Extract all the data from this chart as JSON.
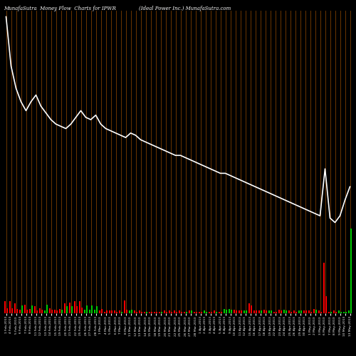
{
  "title_left": "MunafaSutra  Money Flow  Charts for IPWR",
  "title_right": "(Ideal Power Inc.) MunafaSutra.com",
  "background_color": "#000000",
  "line_color": "#ffffff",
  "separator_color": "#8B4500",
  "fig_width": 5.0,
  "fig_height": 5.0,
  "line_data": [
    100,
    78,
    68,
    62,
    58,
    62,
    65,
    60,
    57,
    54,
    52,
    51,
    50,
    52,
    55,
    58,
    55,
    54,
    56,
    52,
    50,
    49,
    48,
    47,
    46,
    48,
    47,
    45,
    44,
    43,
    42,
    41,
    40,
    39,
    38,
    38,
    37,
    36,
    35,
    34,
    33,
    32,
    31,
    30,
    30,
    29,
    28,
    27,
    26,
    25,
    24,
    23,
    22,
    21,
    20,
    19,
    18,
    17,
    16,
    15,
    14,
    13,
    12,
    11,
    32,
    10,
    8,
    11,
    18,
    24
  ],
  "categories": [
    "1 Feb,2013",
    "4 Feb,2013",
    "5 Feb,2013",
    "6 Feb,2013",
    "7 Feb,2013",
    "8 Feb,2013",
    "11 Feb,2013",
    "12 Feb,2013",
    "13 Feb,2013",
    "14 Feb,2013",
    "15 Feb,2013",
    "19 Feb,2013",
    "20 Feb,2013",
    "21 Feb,2013",
    "22 Feb,2013",
    "25 Feb,2013",
    "26 Feb,2013",
    "27 Feb,2013",
    "28 Feb,2013",
    "1 Mar,2013",
    "4 Mar,2013",
    "5 Mar,2013",
    "6 Mar,2013",
    "7 Mar,2013",
    "8 Mar,2013",
    "11 Mar,2013",
    "12 Mar,2013",
    "13 Mar,2013",
    "14 Mar,2013",
    "15 Mar,2013",
    "18 Mar,2013",
    "19 Mar,2013",
    "20 Mar,2013",
    "21 Mar,2013",
    "22 Mar,2013",
    "25 Mar,2013",
    "26 Mar,2013",
    "27 Mar,2013",
    "28 Mar,2013",
    "1 Apr,2013",
    "2 Apr,2013",
    "3 Apr,2013",
    "4 Apr,2013",
    "5 Apr,2013",
    "8 Apr,2013",
    "9 Apr,2013",
    "10 Apr,2013",
    "11 Apr,2013",
    "12 Apr,2013",
    "15 Apr,2013",
    "16 Apr,2013",
    "17 Apr,2013",
    "18 Apr,2013",
    "19 Apr,2013",
    "22 Apr,2013",
    "23 Apr,2013",
    "24 Apr,2013",
    "25 Apr,2013",
    "26 Apr,2013",
    "29 Apr,2013",
    "30 Apr,2013",
    "1 May,2013",
    "2 May,2013",
    "3 May,2013",
    "6 May,2013",
    "7 May,2013",
    "8 May,2013",
    "9 May,2013",
    "10 May,2013",
    "13 May,2013"
  ],
  "bar1_heights": [
    14,
    14,
    12,
    4,
    10,
    5,
    8,
    6,
    3,
    6,
    4,
    5,
    12,
    13,
    14,
    14,
    4,
    4,
    4,
    3,
    2,
    3,
    3,
    3,
    15,
    3,
    3,
    3,
    2,
    2,
    2,
    2,
    3,
    3,
    3,
    3,
    2,
    3,
    2,
    2,
    3,
    2,
    3,
    2,
    5,
    5,
    4,
    3,
    3,
    12,
    3,
    3,
    4,
    3,
    2,
    4,
    4,
    3,
    3,
    3,
    3,
    3,
    5,
    3,
    60,
    2,
    3,
    3,
    2,
    3
  ],
  "bar2_heights": [
    6,
    6,
    5,
    9,
    4,
    9,
    3,
    4,
    10,
    4,
    3,
    4,
    8,
    8,
    8,
    7,
    9,
    9,
    8,
    5,
    3,
    3,
    2,
    2,
    4,
    4,
    2,
    2,
    2,
    2,
    2,
    2,
    2,
    2,
    2,
    2,
    2,
    3,
    2,
    2,
    2,
    2,
    2,
    2,
    4,
    4,
    3,
    3,
    3,
    9,
    3,
    3,
    3,
    3,
    2,
    3,
    3,
    2,
    2,
    3,
    3,
    2,
    4,
    2,
    20,
    2,
    2,
    2,
    2,
    100
  ],
  "bar1_colors": [
    "red",
    "red",
    "red",
    "red",
    "red",
    "red",
    "red",
    "red",
    "green",
    "red",
    "red",
    "red",
    "red",
    "red",
    "red",
    "red",
    "green",
    "green",
    "green",
    "red",
    "red",
    "red",
    "red",
    "red",
    "red",
    "green",
    "red",
    "red",
    "red",
    "red",
    "red",
    "red",
    "red",
    "red",
    "red",
    "red",
    "red",
    "red",
    "red",
    "red",
    "green",
    "red",
    "red",
    "red",
    "green",
    "green",
    "red",
    "red",
    "green",
    "red",
    "red",
    "red",
    "red",
    "green",
    "red",
    "red",
    "green",
    "red",
    "red",
    "green",
    "red",
    "red",
    "red",
    "red",
    "red",
    "red",
    "red",
    "green",
    "green",
    "green"
  ],
  "bar2_colors": [
    "red",
    "red",
    "red",
    "green",
    "red",
    "green",
    "red",
    "red",
    "green",
    "red",
    "red",
    "green",
    "green",
    "green",
    "red",
    "red",
    "green",
    "green",
    "green",
    "red",
    "red",
    "red",
    "red",
    "green",
    "red",
    "green",
    "red",
    "red",
    "green",
    "red",
    "red",
    "green",
    "red",
    "red",
    "red",
    "red",
    "green",
    "green",
    "red",
    "red",
    "green",
    "red",
    "green",
    "red",
    "green",
    "green",
    "red",
    "red",
    "green",
    "red",
    "red",
    "green",
    "red",
    "green",
    "red",
    "red",
    "green",
    "red",
    "red",
    "green",
    "red",
    "red",
    "green",
    "red",
    "red",
    "green",
    "red",
    "green",
    "green",
    "green"
  ]
}
